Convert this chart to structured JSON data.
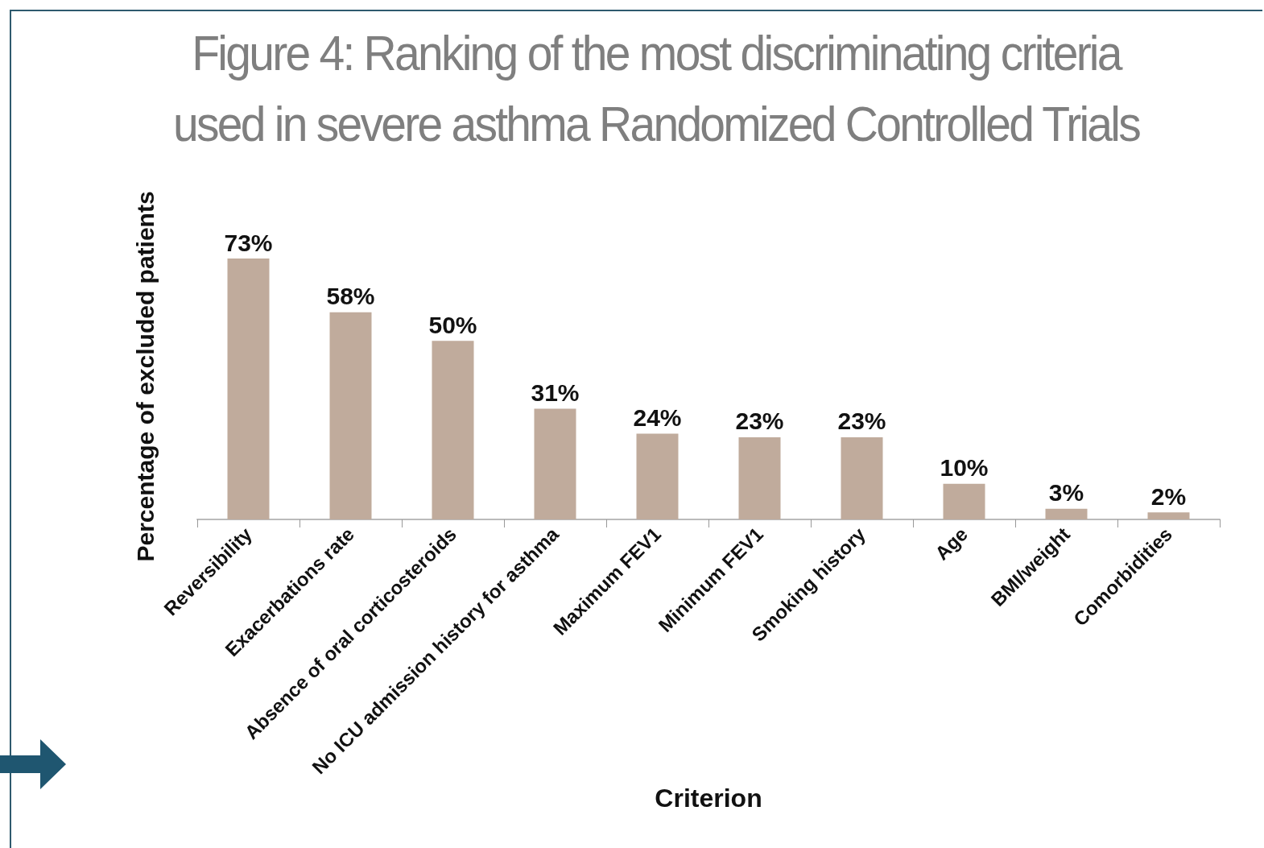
{
  "chart_data": {
    "type": "bar",
    "title": "Figure 4: Ranking of the most discriminating criteria used in severe asthma Randomized Controlled Trials",
    "xlabel": "Criterion",
    "ylabel": "Percentage of excluded patients",
    "categories": [
      "Reversibility",
      "Exacerbations rate",
      "Absence of oral corticosteroids",
      "No ICU admission history for asthma",
      "Maximum FEV1",
      "Minimum FEV1",
      "Smoking history",
      "Age",
      "BMI/weight",
      "Comorbidities"
    ],
    "values": [
      73,
      58,
      50,
      31,
      24,
      23,
      23,
      10,
      3,
      2
    ],
    "value_labels": [
      "73%",
      "58%",
      "50%",
      "31%",
      "24%",
      "23%",
      "23%",
      "10%",
      "3%",
      "2%"
    ],
    "color": "#c0ab9c"
  }
}
